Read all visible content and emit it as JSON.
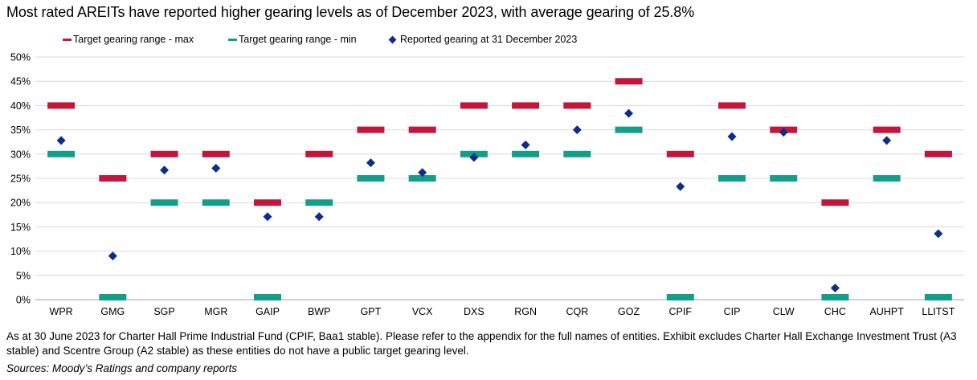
{
  "title": "Most rated AREITs have reported higher gearing levels as of December 2023, with average gearing of 25.8%",
  "footnote": "As at 30 June 2023 for Charter Hall Prime Industrial Fund (CPIF, Baa1 stable). Please refer to the appendix for the full names of entities. Exhibit excludes Charter Hall Exchange Investment Trust (A3 stable) and Scentre Group (A2 stable) as these entities do not have a public target gearing level.",
  "sources": "Sources: Moody’s Ratings and company reports",
  "colors": {
    "max": "#c4153c",
    "min": "#139e8a",
    "reported": "#0d2d8c",
    "grid": "#d9d9d9"
  },
  "chart_data": {
    "type": "scatter",
    "categories": [
      "WPR",
      "GMG",
      "SGP",
      "MGR",
      "GAIP",
      "BWP",
      "GPT",
      "VCX",
      "DXS",
      "RGN",
      "CQR",
      "GOZ",
      "CPIF",
      "CIP",
      "CLW",
      "CHC",
      "AUHPT",
      "LLITST"
    ],
    "series": [
      {
        "name": "Target gearing range - max",
        "marker": "dash",
        "values": [
          40,
          25,
          30,
          30,
          20,
          30,
          35,
          35,
          40,
          40,
          40,
          45,
          30,
          40,
          35,
          20,
          35,
          30
        ]
      },
      {
        "name": "Target gearing range - min",
        "marker": "dash",
        "values": [
          30,
          0,
          20,
          20,
          0,
          20,
          25,
          25,
          30,
          30,
          30,
          35,
          0,
          25,
          25,
          0,
          25,
          0
        ]
      },
      {
        "name": "Reported gearing at 31 December 2023",
        "marker": "diamond",
        "values": [
          32.8,
          9.0,
          26.7,
          27.1,
          17.1,
          17.1,
          28.2,
          26.2,
          29.3,
          31.9,
          35.0,
          38.4,
          23.3,
          33.6,
          34.5,
          2.4,
          32.8,
          13.6
        ]
      }
    ],
    "ylim": [
      0,
      50
    ],
    "yticks": [
      "0%",
      "5%",
      "10%",
      "15%",
      "20%",
      "25%",
      "30%",
      "35%",
      "40%",
      "45%",
      "50%"
    ],
    "grid": true,
    "legend_position": "top"
  }
}
